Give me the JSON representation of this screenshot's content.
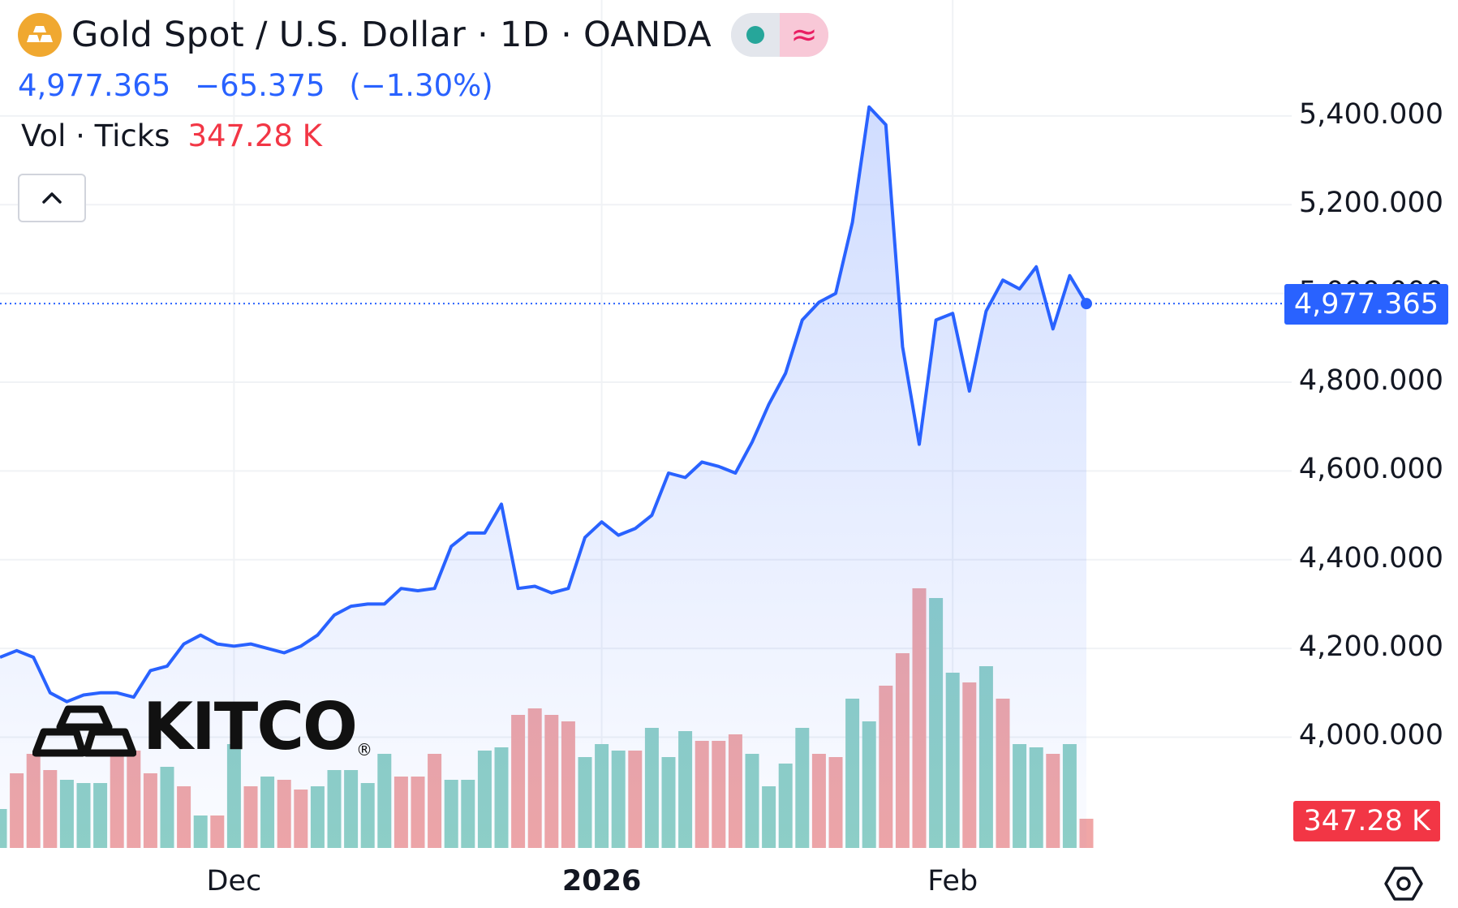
{
  "header": {
    "title": "Gold Spot / U.S. Dollar · 1D · OANDA",
    "market_status_icon": "green-dot-icon",
    "delayed_icon": "approx-icon",
    "delayed_symbol": "≈"
  },
  "quote": {
    "last": "4,977.365",
    "change": "−65.375",
    "change_pct": "(−1.30%)"
  },
  "volume": {
    "label": "Vol · Ticks",
    "value": "347.28 K"
  },
  "watermark": {
    "text": "KITCO",
    "reg": "®"
  },
  "colors": {
    "line": "#2962ff",
    "area": "#2962ff",
    "up_volume": "#8fd0c6",
    "down_volume": "#f0a6a6",
    "price_tag": "#2962ff",
    "volume_tag": "#f23645"
  },
  "chart_data": {
    "type": "area",
    "symbol": "XAUUSD",
    "ylim": [
      3860,
      5460
    ],
    "y_ticks": [
      "5,400.000",
      "5,200.000",
      "5,000.000",
      "4,800.000",
      "4,600.000",
      "4,400.000",
      "4,200.000",
      "4,000.000"
    ],
    "y_tick_values": [
      5400,
      5200,
      5000,
      4800,
      4600,
      4400,
      4200,
      4000
    ],
    "x_labels": [
      {
        "text": "Dec",
        "index": 14,
        "bold": false
      },
      {
        "text": "2026",
        "index": 36,
        "bold": true
      },
      {
        "text": "Feb",
        "index": 57,
        "bold": false
      }
    ],
    "last_price_label": "4,977.365",
    "last_volume_label": "347.28 K",
    "close": [
      4180,
      4195,
      4180,
      4100,
      4080,
      4095,
      4100,
      4100,
      4090,
      4150,
      4160,
      4210,
      4230,
      4210,
      4205,
      4210,
      4200,
      4190,
      4205,
      4230,
      4275,
      4295,
      4300,
      4300,
      4335,
      4330,
      4335,
      4430,
      4460,
      4460,
      4525,
      4335,
      4340,
      4325,
      4335,
      4450,
      4485,
      4455,
      4470,
      4500,
      4595,
      4585,
      4620,
      4610,
      4595,
      4665,
      4750,
      4820,
      4940,
      4980,
      5000,
      5160,
      5420,
      5380,
      4880,
      4660,
      4940,
      4955,
      4780,
      4960,
      5030,
      5010,
      5060,
      4920,
      5040,
      4977
    ],
    "volume_relative": [
      0.12,
      0.23,
      0.29,
      0.24,
      0.21,
      0.2,
      0.2,
      0.29,
      0.3,
      0.23,
      0.25,
      0.19,
      0.1,
      0.1,
      0.32,
      0.19,
      0.22,
      0.21,
      0.18,
      0.19,
      0.24,
      0.24,
      0.2,
      0.29,
      0.22,
      0.22,
      0.29,
      0.21,
      0.21,
      0.3,
      0.31,
      0.41,
      0.43,
      0.41,
      0.39,
      0.28,
      0.32,
      0.3,
      0.3,
      0.37,
      0.28,
      0.36,
      0.33,
      0.33,
      0.35,
      0.29,
      0.19,
      0.26,
      0.37,
      0.29,
      0.28,
      0.46,
      0.39,
      0.5,
      0.6,
      0.8,
      0.77,
      0.54,
      0.51,
      0.56,
      0.46,
      0.32,
      0.31,
      0.29,
      0.32,
      0.09
    ],
    "volume_up": [
      true,
      false,
      false,
      false,
      true,
      true,
      true,
      false,
      false,
      false,
      true,
      false,
      true,
      false,
      true,
      false,
      true,
      false,
      false,
      true,
      true,
      true,
      true,
      true,
      false,
      false,
      false,
      true,
      true,
      true,
      true,
      false,
      false,
      false,
      false,
      true,
      true,
      true,
      false,
      true,
      true,
      true,
      false,
      false,
      false,
      true,
      true,
      true,
      true,
      false,
      false,
      true,
      true,
      false,
      false,
      false,
      true,
      true,
      false,
      true,
      false,
      true,
      true,
      false,
      true,
      false
    ]
  }
}
